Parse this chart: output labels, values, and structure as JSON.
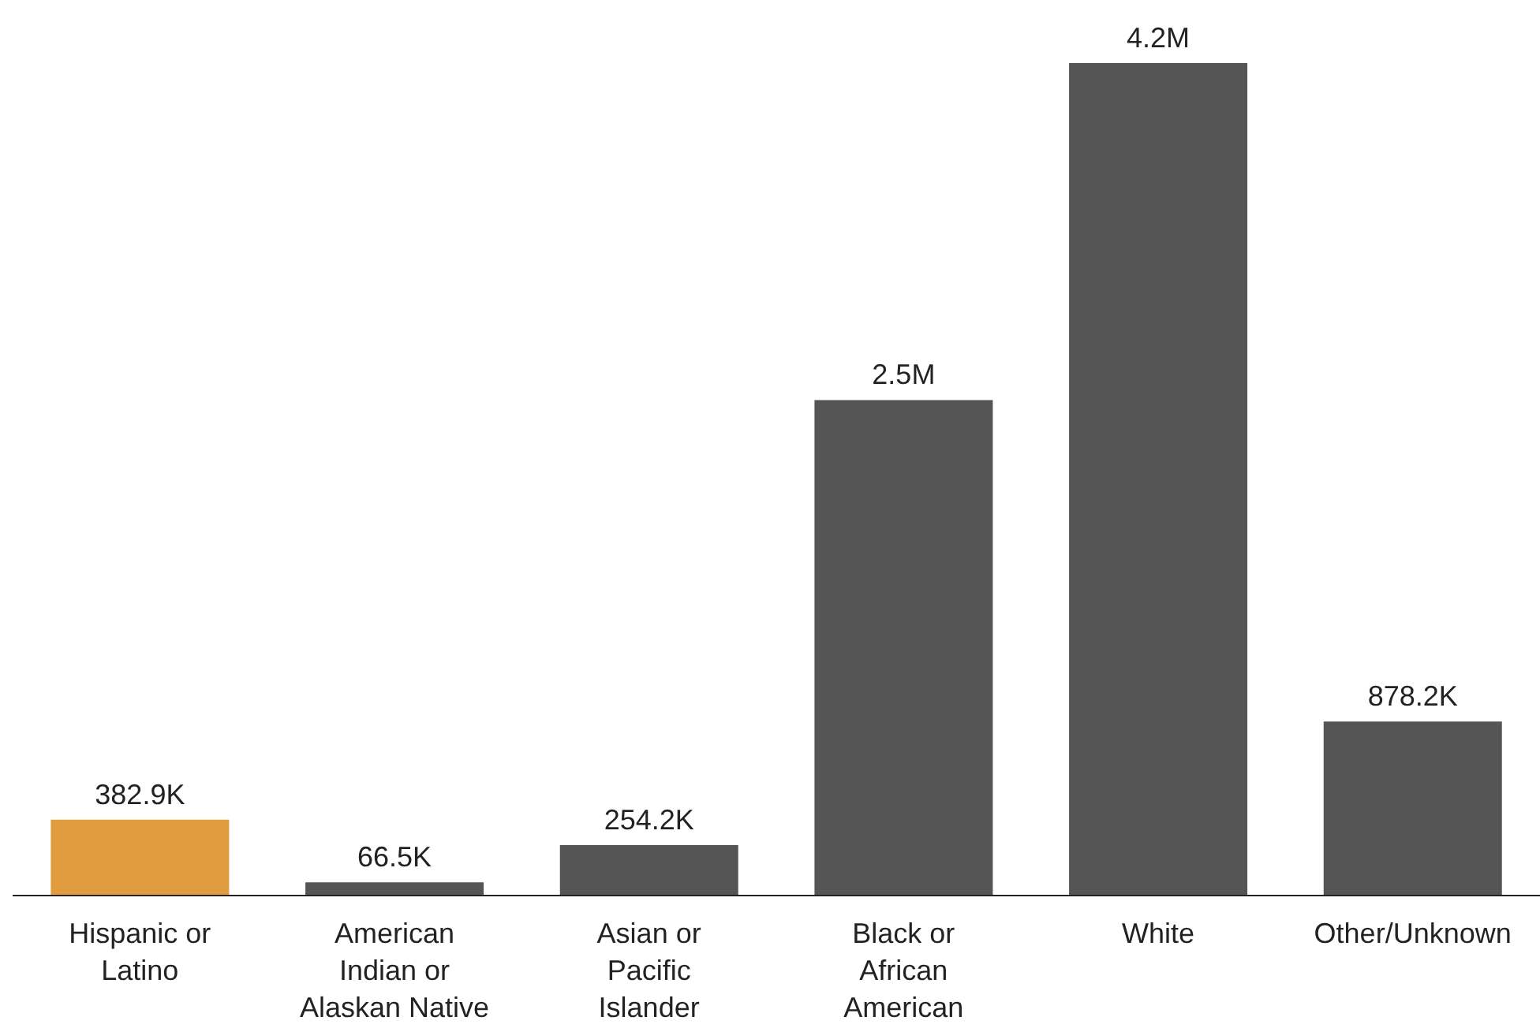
{
  "chart_data": {
    "type": "bar",
    "categories": [
      "Hispanic or Latino",
      "American Indian or Alaskan Native",
      "Asian or Pacific Islander",
      "Black or African American",
      "White",
      "Other/Unknown"
    ],
    "values": [
      382900,
      66500,
      254200,
      2500000,
      4200000,
      878200
    ],
    "value_labels": [
      "382.9K",
      "66.5K",
      "254.2K",
      "2.5M",
      "4.2M",
      "878.2K"
    ],
    "colors": [
      "#e09c3f",
      "#555555",
      "#555555",
      "#555555",
      "#555555",
      "#555555"
    ],
    "grid": false,
    "legend": false
  }
}
